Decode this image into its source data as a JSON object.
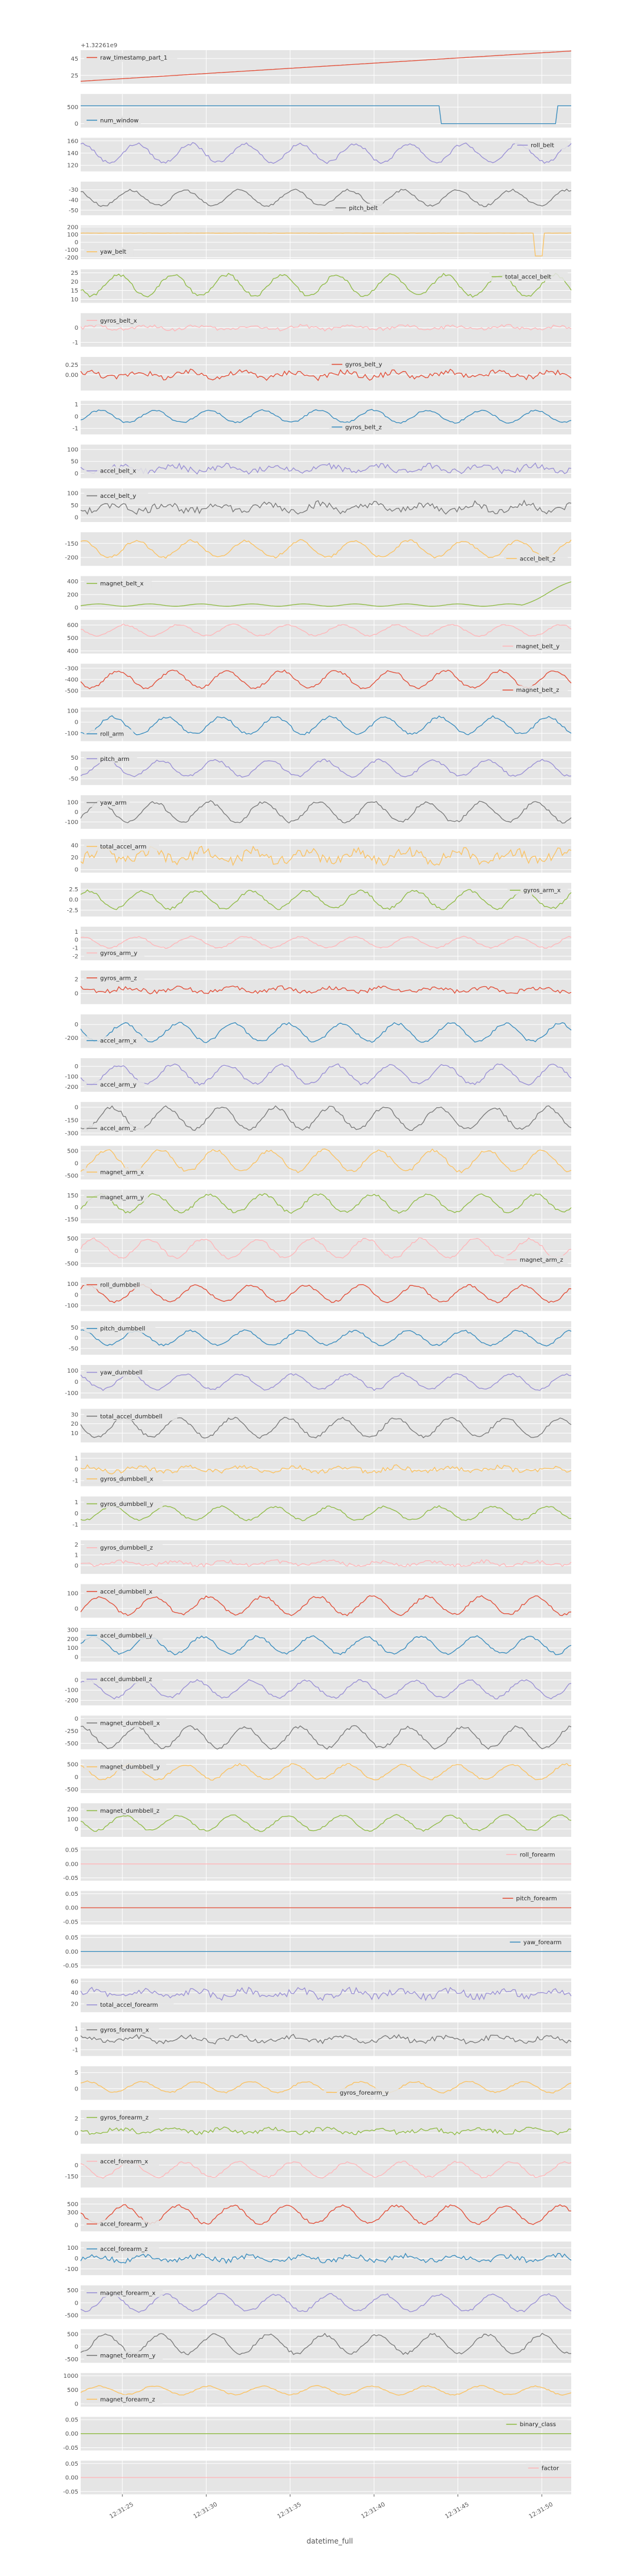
{
  "chart_data": {
    "type": "line",
    "xlabel": "datetime_full",
    "offset_label": "+1.32261e9",
    "x_ticks": [
      "12:31:25",
      "12:31:30",
      "12:31:35",
      "12:31:40",
      "12:31:45",
      "12:31:50"
    ],
    "x_range": [
      0,
      56
    ],
    "grid": true,
    "legend_placement": "per-panel",
    "panels": [
      {
        "name": "raw_timestamp_part_1",
        "color": "#E24A33",
        "yticks": [
          "25",
          "45"
        ],
        "ylim": [
          15,
          55
        ],
        "legend": "top-left",
        "shape": "ramp",
        "base": 18,
        "amp": 36
      },
      {
        "name": "num_window",
        "color": "#348ABD",
        "yticks": [
          "0",
          "500"
        ],
        "ylim": [
          -120,
          900
        ],
        "legend": "bottom-left",
        "shape": "step",
        "base": 0,
        "amp": 600
      },
      {
        "name": "roll_belt",
        "color": "#988ED5",
        "yticks": [
          "120",
          "140",
          "160"
        ],
        "ylim": [
          110,
          165
        ],
        "legend": "top-right",
        "shape": "wave",
        "base": 140,
        "amp": 18
      },
      {
        "name": "pitch_belt",
        "color": "#777777",
        "yticks": [
          "-50",
          "-40",
          "-30"
        ],
        "ylim": [
          -55,
          -22
        ],
        "legend": "bottom-center",
        "shape": "wave",
        "base": -38,
        "amp": 9
      },
      {
        "name": "yaw_belt",
        "color": "#FBC15E",
        "yticks": [
          "-200",
          "-100",
          "0",
          "100",
          "200"
        ],
        "ylim": [
          -220,
          220
        ],
        "legend": "bottom-left",
        "shape": "spike",
        "base": 120,
        "amp": 300
      },
      {
        "name": "total_accel_belt",
        "color": "#8EBA42",
        "yticks": [
          "10",
          "15",
          "20",
          "25"
        ],
        "ylim": [
          8,
          27
        ],
        "legend": "top-right",
        "shape": "wave",
        "base": 18,
        "amp": 7
      },
      {
        "name": "gyros_belt_x",
        "color": "#FFB5B8",
        "yticks": [
          "-1",
          "0"
        ],
        "ylim": [
          -1.3,
          1.0
        ],
        "legend": "top-left",
        "shape": "noise",
        "base": 0,
        "amp": 0.2
      },
      {
        "name": "gyros_belt_y",
        "color": "#E24A33",
        "yticks": [
          "0.00",
          "0.25"
        ],
        "ylim": [
          -0.4,
          0.45
        ],
        "legend": "top-center",
        "shape": "noise",
        "base": 0,
        "amp": 0.12
      },
      {
        "name": "gyros_belt_z",
        "color": "#348ABD",
        "yticks": [
          "-1",
          "0",
          "1"
        ],
        "ylim": [
          -1.5,
          1.3
        ],
        "legend": "bottom-center",
        "shape": "wave",
        "base": 0,
        "amp": 0.6
      },
      {
        "name": "accel_belt_x",
        "color": "#988ED5",
        "yticks": [
          "0",
          "50",
          "100"
        ],
        "ylim": [
          -20,
          120
        ],
        "legend": "bottom-left",
        "shape": "noise",
        "base": 20,
        "amp": 20
      },
      {
        "name": "accel_belt_y",
        "color": "#777777",
        "yticks": [
          "0",
          "50",
          "100"
        ],
        "ylim": [
          -20,
          120
        ],
        "legend": "top-left",
        "shape": "noise",
        "base": 40,
        "amp": 25
      },
      {
        "name": "accel_belt_z",
        "color": "#FBC15E",
        "yticks": [
          "-200",
          "-150"
        ],
        "ylim": [
          -230,
          -110
        ],
        "legend": "bottom-right",
        "shape": "wave",
        "base": -170,
        "amp": 35
      },
      {
        "name": "magnet_belt_x",
        "color": "#8EBA42",
        "yticks": [
          "0",
          "200",
          "400"
        ],
        "ylim": [
          -30,
          480
        ],
        "legend": "top-left",
        "shape": "tailrise",
        "base": 40,
        "amp": 350
      },
      {
        "name": "magnet_belt_y",
        "color": "#FFB5B8",
        "yticks": [
          "400",
          "500",
          "600"
        ],
        "ylim": [
          380,
          640
        ],
        "legend": "bottom-right",
        "shape": "wave",
        "base": 560,
        "amp": 50
      },
      {
        "name": "magnet_belt_z",
        "color": "#E24A33",
        "yticks": [
          "-500",
          "-400",
          "-300"
        ],
        "ylim": [
          -560,
          -260
        ],
        "legend": "bottom-right",
        "shape": "wave",
        "base": -400,
        "amp": 90
      },
      {
        "name": "roll_arm",
        "color": "#348ABD",
        "yticks": [
          "-100",
          "0",
          "100"
        ],
        "ylim": [
          -170,
          130
        ],
        "legend": "bottom-left",
        "shape": "wave",
        "base": -30,
        "amp": 90
      },
      {
        "name": "pitch_arm",
        "color": "#988ED5",
        "yticks": [
          "-50",
          "0",
          "50"
        ],
        "ylim": [
          -80,
          80
        ],
        "legend": "top-left",
        "shape": "wave",
        "base": 0,
        "amp": 45
      },
      {
        "name": "yaw_arm",
        "color": "#777777",
        "yticks": [
          "-100",
          "0",
          "100"
        ],
        "ylim": [
          -170,
          170
        ],
        "legend": "top-left",
        "shape": "wave",
        "base": 0,
        "amp": 120
      },
      {
        "name": "total_accel_arm",
        "color": "#FBC15E",
        "yticks": [
          "0",
          "20",
          "40"
        ],
        "ylim": [
          -5,
          50
        ],
        "legend": "top-left",
        "shape": "noise",
        "base": 22,
        "amp": 14
      },
      {
        "name": "gyros_arm_x",
        "color": "#8EBA42",
        "yticks": [
          "-2.5",
          "0.0",
          "2.5"
        ],
        "ylim": [
          -4,
          4
        ],
        "legend": "top-right",
        "shape": "wave",
        "base": 0,
        "amp": 2.5
      },
      {
        "name": "gyros_arm_y",
        "color": "#FFB5B8",
        "yticks": [
          "-2",
          "-1",
          "0",
          "1"
        ],
        "ylim": [
          -2.5,
          1.6
        ],
        "legend": "bottom-left",
        "shape": "wave",
        "base": -0.3,
        "amp": 0.8
      },
      {
        "name": "gyros_arm_z",
        "color": "#E24A33",
        "yticks": [
          "0",
          "2"
        ],
        "ylim": [
          -1.5,
          3.2
        ],
        "legend": "top-left",
        "shape": "noise",
        "base": 0.5,
        "amp": 0.5
      },
      {
        "name": "accel_arm_x",
        "color": "#348ABD",
        "yticks": [
          "-200",
          "0"
        ],
        "ylim": [
          -350,
          150
        ],
        "legend": "bottom-left",
        "shape": "wave",
        "base": -120,
        "amp": 160
      },
      {
        "name": "accel_arm_y",
        "color": "#988ED5",
        "yticks": [
          "-200",
          "-100",
          "0"
        ],
        "ylim": [
          -250,
          80
        ],
        "legend": "bottom-left",
        "shape": "wave",
        "base": -80,
        "amp": 110
      },
      {
        "name": "accel_arm_z",
        "color": "#777777",
        "yticks": [
          "-300",
          "-150",
          "0"
        ],
        "ylim": [
          -330,
          60
        ],
        "legend": "bottom-left",
        "shape": "wave",
        "base": -130,
        "amp": 150
      },
      {
        "name": "magnet_arm_x",
        "color": "#FBC15E",
        "yticks": [
          "-500",
          "0",
          "500"
        ],
        "ylim": [
          -650,
          700
        ],
        "legend": "bottom-left",
        "shape": "wave",
        "base": 100,
        "amp": 500
      },
      {
        "name": "magnet_arm_y",
        "color": "#8EBA42",
        "yticks": [
          "-150",
          "0",
          "150"
        ],
        "ylim": [
          -200,
          220
        ],
        "legend": "top-left",
        "shape": "wave",
        "base": 50,
        "amp": 130
      },
      {
        "name": "magnet_arm_z",
        "color": "#FFB5B8",
        "yticks": [
          "-500",
          "0",
          "500"
        ],
        "ylim": [
          -650,
          700
        ],
        "legend": "bottom-right",
        "shape": "wave",
        "base": 100,
        "amp": 450
      },
      {
        "name": "roll_dumbbell",
        "color": "#E24A33",
        "yticks": [
          "-100",
          "0",
          "100"
        ],
        "ylim": [
          -150,
          160
        ],
        "legend": "top-left",
        "shape": "wave",
        "base": 10,
        "amp": 90
      },
      {
        "name": "pitch_dumbbell",
        "color": "#348ABD",
        "yticks": [
          "-50",
          "0",
          "50"
        ],
        "ylim": [
          -80,
          80
        ],
        "legend": "top-left",
        "shape": "wave",
        "base": 0,
        "amp": 40
      },
      {
        "name": "yaw_dumbbell",
        "color": "#988ED5",
        "yticks": [
          "-100",
          "0",
          "100"
        ],
        "ylim": [
          -150,
          150
        ],
        "legend": "top-left",
        "shape": "wave",
        "base": 0,
        "amp": 80
      },
      {
        "name": "total_accel_dumbbell",
        "color": "#777777",
        "yticks": [
          "10",
          "20",
          "30"
        ],
        "ylim": [
          0,
          36
        ],
        "legend": "top-left",
        "shape": "wave",
        "base": 16,
        "amp": 12
      },
      {
        "name": "gyros_dumbbell_x",
        "color": "#FBC15E",
        "yticks": [
          "-1",
          "0",
          "1"
        ],
        "ylim": [
          -1.5,
          1.5
        ],
        "legend": "bottom-left",
        "shape": "noise",
        "base": 0,
        "amp": 0.35
      },
      {
        "name": "gyros_dumbbell_y",
        "color": "#8EBA42",
        "yticks": [
          "-1",
          "0",
          "1"
        ],
        "ylim": [
          -1.5,
          1.5
        ],
        "legend": "top-left",
        "shape": "wave",
        "base": 0,
        "amp": 0.7
      },
      {
        "name": "gyros_dumbbell_z",
        "color": "#FFB5B8",
        "yticks": [
          "0",
          "1",
          "2"
        ],
        "ylim": [
          -0.8,
          2.4
        ],
        "legend": "top-left",
        "shape": "noise",
        "base": 0.2,
        "amp": 0.3
      },
      {
        "name": "accel_dumbbell_x",
        "color": "#E24A33",
        "yticks": [
          "0",
          "100"
        ],
        "ylim": [
          -60,
          160
        ],
        "legend": "top-left",
        "shape": "wave",
        "base": 20,
        "amp": 70
      },
      {
        "name": "accel_dumbbell_y",
        "color": "#348ABD",
        "yticks": [
          "0",
          "100",
          "200",
          "300"
        ],
        "ylim": [
          -50,
          320
        ],
        "legend": "top-left",
        "shape": "wave",
        "base": 130,
        "amp": 110
      },
      {
        "name": "accel_dumbbell_z",
        "color": "#988ED5",
        "yticks": [
          "-200",
          "-100",
          "0"
        ],
        "ylim": [
          -250,
          80
        ],
        "legend": "top-left",
        "shape": "wave",
        "base": -90,
        "amp": 100
      },
      {
        "name": "magnet_dumbbell_x",
        "color": "#777777",
        "yticks": [
          "-500",
          "-250",
          "0"
        ],
        "ylim": [
          -620,
          60
        ],
        "legend": "top-left",
        "shape": "wave",
        "base": -380,
        "amp": 250
      },
      {
        "name": "magnet_dumbbell_y",
        "color": "#FBC15E",
        "yticks": [
          "-500",
          "0",
          "500"
        ],
        "ylim": [
          -650,
          700
        ],
        "legend": "top-left",
        "shape": "wave",
        "base": 200,
        "amp": 350
      },
      {
        "name": "magnet_dumbbell_z",
        "color": "#8EBA42",
        "yticks": [
          "0",
          "100",
          "200"
        ],
        "ylim": [
          -80,
          260
        ],
        "legend": "top-left",
        "shape": "wave",
        "base": 60,
        "amp": 90
      },
      {
        "name": "roll_forearm",
        "color": "#FFB5B8",
        "yticks": [
          "-0.05",
          "0.00",
          "0.05"
        ],
        "ylim": [
          -0.06,
          0.06
        ],
        "legend": "top-right",
        "shape": "flat",
        "base": 0,
        "amp": 0
      },
      {
        "name": "pitch_forearm",
        "color": "#E24A33",
        "yticks": [
          "-0.05",
          "0.00",
          "0.05"
        ],
        "ylim": [
          -0.06,
          0.06
        ],
        "legend": "top-right",
        "shape": "flat",
        "base": 0,
        "amp": 0
      },
      {
        "name": "yaw_forearm",
        "color": "#348ABD",
        "yticks": [
          "-0.05",
          "0.00",
          "0.05"
        ],
        "ylim": [
          -0.06,
          0.06
        ],
        "legend": "top-right",
        "shape": "flat",
        "base": 0,
        "amp": 0
      },
      {
        "name": "total_accel_forearm",
        "color": "#988ED5",
        "yticks": [
          "20",
          "40",
          "60"
        ],
        "ylim": [
          5,
          65
        ],
        "legend": "bottom-left",
        "shape": "noise",
        "base": 38,
        "amp": 10
      },
      {
        "name": "gyros_forearm_x",
        "color": "#777777",
        "yticks": [
          "-1",
          "0",
          "1"
        ],
        "ylim": [
          -1.6,
          1.6
        ],
        "legend": "top-left",
        "shape": "noise",
        "base": 0,
        "amp": 0.4
      },
      {
        "name": "gyros_forearm_y",
        "color": "#FBC15E",
        "yticks": [
          "0",
          "5"
        ],
        "ylim": [
          -3.5,
          7
        ],
        "legend": "bottom-center",
        "shape": "wave",
        "base": 0.5,
        "amp": 2
      },
      {
        "name": "gyros_forearm_z",
        "color": "#8EBA42",
        "yticks": [
          "0",
          "2"
        ],
        "ylim": [
          -1.5,
          3.2
        ],
        "legend": "top-left",
        "shape": "noise",
        "base": 0.3,
        "amp": 0.5
      },
      {
        "name": "accel_forearm_x",
        "color": "#FFB5B8",
        "yticks": [
          "-150",
          "0"
        ],
        "ylim": [
          -300,
          150
        ],
        "legend": "top-left",
        "shape": "wave",
        "base": -60,
        "amp": 120
      },
      {
        "name": "accel_forearm_y",
        "color": "#E24A33",
        "yticks": [
          "0",
          "300",
          "500"
        ],
        "ylim": [
          -150,
          650
        ],
        "legend": "bottom-left",
        "shape": "wave",
        "base": 250,
        "amp": 250
      },
      {
        "name": "accel_forearm_z",
        "color": "#348ABD",
        "yticks": [
          "-100",
          "0",
          "100"
        ],
        "ylim": [
          -160,
          160
        ],
        "legend": "top-left",
        "shape": "noise",
        "base": 0,
        "amp": 40
      },
      {
        "name": "magnet_forearm_x",
        "color": "#988ED5",
        "yticks": [
          "-500",
          "0",
          "500"
        ],
        "ylim": [
          -650,
          700
        ],
        "legend": "top-left",
        "shape": "wave",
        "base": 0,
        "amp": 400
      },
      {
        "name": "magnet_forearm_y",
        "color": "#777777",
        "yticks": [
          "-500",
          "0",
          "500"
        ],
        "ylim": [
          -650,
          700
        ],
        "legend": "bottom-left",
        "shape": "wave",
        "base": 100,
        "amp": 450
      },
      {
        "name": "magnet_forearm_z",
        "color": "#FBC15E",
        "yticks": [
          "0",
          "500",
          "1000"
        ],
        "ylim": [
          -100,
          1100
        ],
        "legend": "bottom-left",
        "shape": "wave",
        "base": 480,
        "amp": 180
      },
      {
        "name": "binary_class",
        "color": "#8EBA42",
        "yticks": [
          "-0.05",
          "0.00",
          "0.05"
        ],
        "ylim": [
          -0.06,
          0.06
        ],
        "legend": "top-right",
        "shape": "flat",
        "base": 0,
        "amp": 0
      },
      {
        "name": "factor",
        "color": "#FFB5B8",
        "yticks": [
          "-0.05",
          "0.00",
          "0.05"
        ],
        "ylim": [
          -0.06,
          0.06
        ],
        "legend": "top-right",
        "shape": "flat",
        "base": 0,
        "amp": 0
      }
    ]
  }
}
